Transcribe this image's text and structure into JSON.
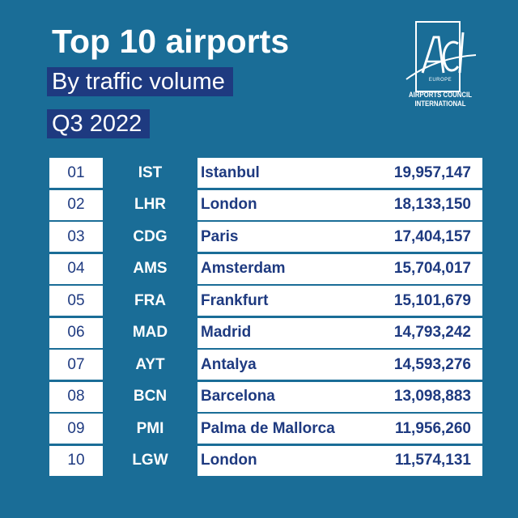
{
  "header": {
    "title": "Top 10 airports",
    "subtitle": "By traffic volume",
    "period": "Q3 2022"
  },
  "logo": {
    "mark": "ACI",
    "region": "EUROPE",
    "line1": "AIRPORTS COUNCIL",
    "line2": "INTERNATIONAL"
  },
  "colors": {
    "background": "#1a6d97",
    "navy": "#1e3a80",
    "row": "#ffffff"
  },
  "table": {
    "rows": [
      {
        "rank": "01",
        "code": "IST",
        "city": "Istanbul",
        "passengers": "19,957,147"
      },
      {
        "rank": "02",
        "code": "LHR",
        "city": "London",
        "passengers": "18,133,150"
      },
      {
        "rank": "03",
        "code": "CDG",
        "city": "Paris",
        "passengers": "17,404,157"
      },
      {
        "rank": "04",
        "code": "AMS",
        "city": "Amsterdam",
        "passengers": "15,704,017"
      },
      {
        "rank": "05",
        "code": "FRA",
        "city": "Frankfurt",
        "passengers": "15,101,679"
      },
      {
        "rank": "06",
        "code": "MAD",
        "city": "Madrid",
        "passengers": "14,793,242"
      },
      {
        "rank": "07",
        "code": "AYT",
        "city": "Antalya",
        "passengers": "14,593,276"
      },
      {
        "rank": "08",
        "code": "BCN",
        "city": "Barcelona",
        "passengers": "13,098,883"
      },
      {
        "rank": "09",
        "code": "PMI",
        "city": "Palma de Mallorca",
        "passengers": "11,956,260"
      },
      {
        "rank": "10",
        "code": "LGW",
        "city": "London",
        "passengers": "11,574,131"
      }
    ]
  }
}
